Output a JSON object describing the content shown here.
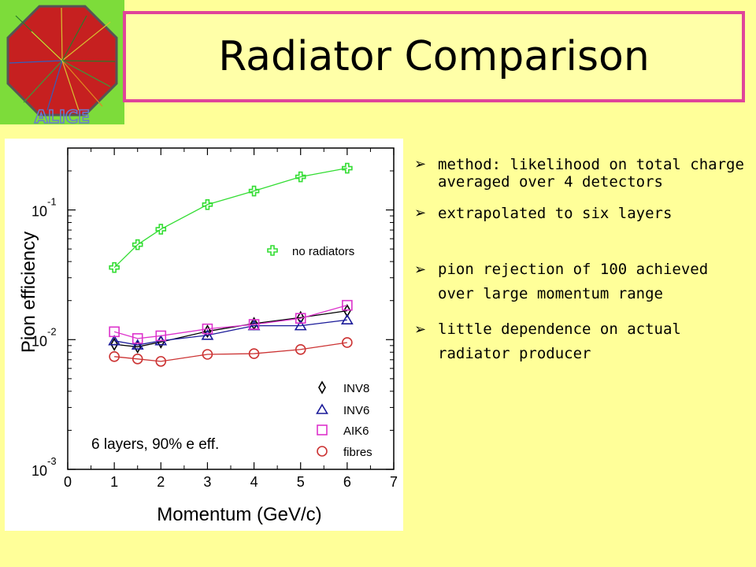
{
  "slide": {
    "title": "Radiator Comparison",
    "logo_text": "ALICE",
    "bullets": [
      "method: likelihood on total charge averaged over 4 detectors",
      "extrapolated to six layers",
      "pion rejection of 100 achieved over large momentum range",
      "little dependence on actual radiator producer"
    ],
    "bullet_marker": "➢"
  },
  "colors": {
    "background": "#ffff99",
    "title_border": "#e0449a",
    "no_radiators": "#33dd33",
    "INV8": "#000000",
    "INV6": "#1a1a99",
    "AIK6": "#dd33cc",
    "fibres": "#cc3333"
  },
  "chart_data": {
    "type": "line",
    "xlabel": "Momentum (GeV/c)",
    "ylabel": "Pion efficiency",
    "xlim": [
      0,
      7
    ],
    "ylim": [
      0.001,
      0.3
    ],
    "y_scale": "log",
    "x_ticks": [
      "0",
      "1",
      "2",
      "3",
      "4",
      "5",
      "6",
      "7"
    ],
    "y_ticks": [
      {
        "base": "10",
        "exp": "-3",
        "value": 0.001
      },
      {
        "base": "10",
        "exp": "-2",
        "value": 0.01
      },
      {
        "base": "10",
        "exp": "-1",
        "value": 0.1
      }
    ],
    "annotation": "6 layers, 90% e eff.",
    "legend_top": {
      "label": "no radiators",
      "placement": "upper-right"
    },
    "legend_bottom": {
      "placement": "lower-right"
    },
    "series": [
      {
        "name": "no radiators",
        "marker": "plus",
        "color_key": "no_radiators",
        "x": [
          1,
          1.5,
          2,
          3,
          4,
          5,
          6
        ],
        "y": [
          0.036,
          0.054,
          0.071,
          0.11,
          0.14,
          0.18,
          0.21
        ]
      },
      {
        "name": "INV8",
        "marker": "diamond",
        "color_key": "INV8",
        "x": [
          1,
          1.5,
          2,
          3,
          4,
          5,
          6
        ],
        "y": [
          0.0092,
          0.0088,
          0.0096,
          0.0116,
          0.0133,
          0.0148,
          0.0167
        ]
      },
      {
        "name": "INV6",
        "marker": "triangle",
        "color_key": "INV6",
        "x": [
          1,
          1.5,
          2,
          3,
          4,
          5,
          6
        ],
        "y": [
          0.0098,
          0.0091,
          0.0098,
          0.0108,
          0.0128,
          0.0128,
          0.0142
        ]
      },
      {
        "name": "AIK6",
        "marker": "square",
        "color_key": "AIK6",
        "x": [
          1,
          1.5,
          2,
          3,
          4,
          5,
          6
        ],
        "y": [
          0.0115,
          0.0102,
          0.0107,
          0.0121,
          0.0131,
          0.0146,
          0.0184
        ]
      },
      {
        "name": "fibres",
        "marker": "circle",
        "color_key": "fibres",
        "x": [
          1,
          1.5,
          2,
          3,
          4,
          5,
          6
        ],
        "y": [
          0.0074,
          0.0071,
          0.0068,
          0.0077,
          0.0078,
          0.0084,
          0.0095
        ]
      }
    ]
  }
}
